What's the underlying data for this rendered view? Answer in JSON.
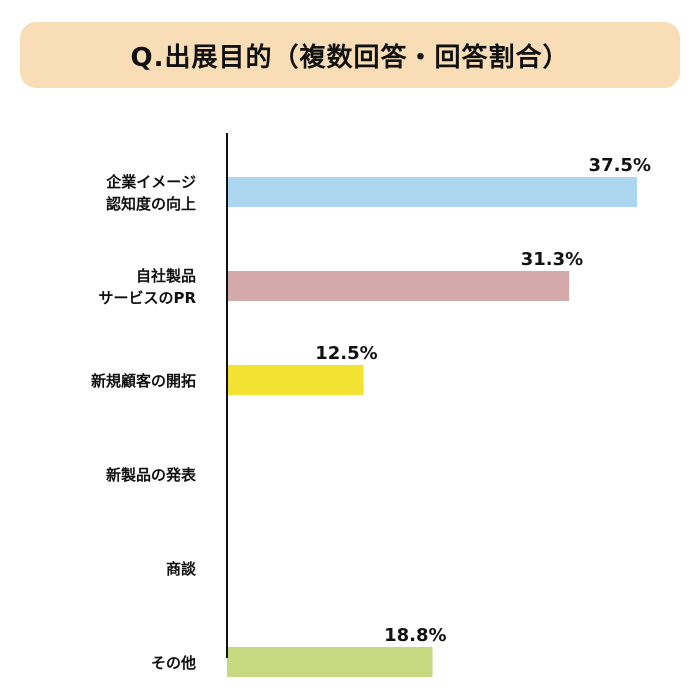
{
  "title": "Q.出展目的（複数回答・回答割合）",
  "colors": {
    "title_bg": "#f8ddb6",
    "axis": "#111111"
  },
  "chart_data": {
    "type": "bar",
    "orientation": "horizontal",
    "title": "Q.出展目的（複数回答・回答割合）",
    "xlim": [
      0,
      40
    ],
    "grid": false,
    "categories": [
      {
        "lines": [
          "企業イメージ",
          "認知度の向上"
        ],
        "value": 37.5,
        "label": "37.5%",
        "color": "#acd6f0"
      },
      {
        "lines": [
          "自社製品",
          "サービスのPR"
        ],
        "value": 31.3,
        "label": "31.3%",
        "color": "#d3a9a9"
      },
      {
        "lines": [
          "新規顧客の開拓"
        ],
        "value": 12.5,
        "label": "12.5%",
        "color": "#f2e232"
      },
      {
        "lines": [
          "新製品の発表"
        ],
        "value": 0,
        "label": "",
        "color": "#cccccc"
      },
      {
        "lines": [
          "商談"
        ],
        "value": 0,
        "label": "",
        "color": "#cccccc"
      },
      {
        "lines": [
          "その他"
        ],
        "value": 18.8,
        "label": "18.8%",
        "color": "#c8d880"
      }
    ]
  }
}
